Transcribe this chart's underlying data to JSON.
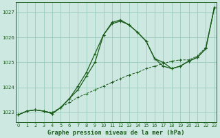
{
  "title": "Graphe pression niveau de la mer (hPa)",
  "bg_color": "#cce8e0",
  "line_color": "#1a5c1a",
  "grid_color": "#99ccbb",
  "ylim": [
    1022.6,
    1027.4
  ],
  "xlim": [
    -0.3,
    23.3
  ],
  "yticks": [
    1023,
    1024,
    1025,
    1026,
    1027
  ],
  "xticks": [
    0,
    1,
    2,
    3,
    4,
    5,
    6,
    7,
    8,
    9,
    10,
    11,
    12,
    13,
    14,
    15,
    16,
    17,
    18,
    19,
    20,
    21,
    22,
    23
  ],
  "line1_x": [
    0,
    1,
    2,
    3,
    4,
    5,
    6,
    7,
    8,
    9,
    10,
    11,
    12,
    13,
    14,
    15,
    16,
    17,
    18,
    19,
    20,
    21,
    22,
    23
  ],
  "line1_y": [
    1022.9,
    1023.05,
    1023.1,
    1023.05,
    1023.0,
    1023.2,
    1023.4,
    1023.6,
    1023.75,
    1023.9,
    1024.05,
    1024.2,
    1024.35,
    1024.5,
    1024.6,
    1024.75,
    1024.85,
    1024.95,
    1025.05,
    1025.1,
    1025.1,
    1025.25,
    1025.6,
    1027.2
  ],
  "line2_x": [
    0,
    1,
    2,
    3,
    4,
    5,
    6,
    7,
    8,
    9,
    10,
    11,
    12,
    13,
    14,
    15,
    16,
    17,
    18,
    19,
    20,
    21,
    22,
    23
  ],
  "line2_y": [
    1022.9,
    1023.05,
    1023.1,
    1023.05,
    1022.95,
    1023.2,
    1023.55,
    1023.9,
    1024.45,
    1025.0,
    1026.1,
    1026.55,
    1026.65,
    1026.5,
    1026.2,
    1025.85,
    1025.15,
    1025.0,
    1024.75,
    1024.85,
    1025.05,
    1025.2,
    1025.55,
    1027.2
  ],
  "line3_x": [
    0,
    1,
    2,
    3,
    4,
    5,
    6,
    7,
    8,
    9,
    10,
    11,
    12,
    13,
    14,
    15,
    16,
    17,
    18,
    19,
    20,
    21,
    22,
    23
  ],
  "line3_y": [
    1022.9,
    1023.05,
    1023.1,
    1023.05,
    1022.95,
    1023.2,
    1023.55,
    1024.05,
    1024.6,
    1025.35,
    1026.1,
    1026.6,
    1026.7,
    1026.5,
    1026.2,
    1025.85,
    1025.15,
    1024.85,
    1024.75,
    1024.85,
    1025.05,
    1025.2,
    1025.55,
    1027.2
  ]
}
